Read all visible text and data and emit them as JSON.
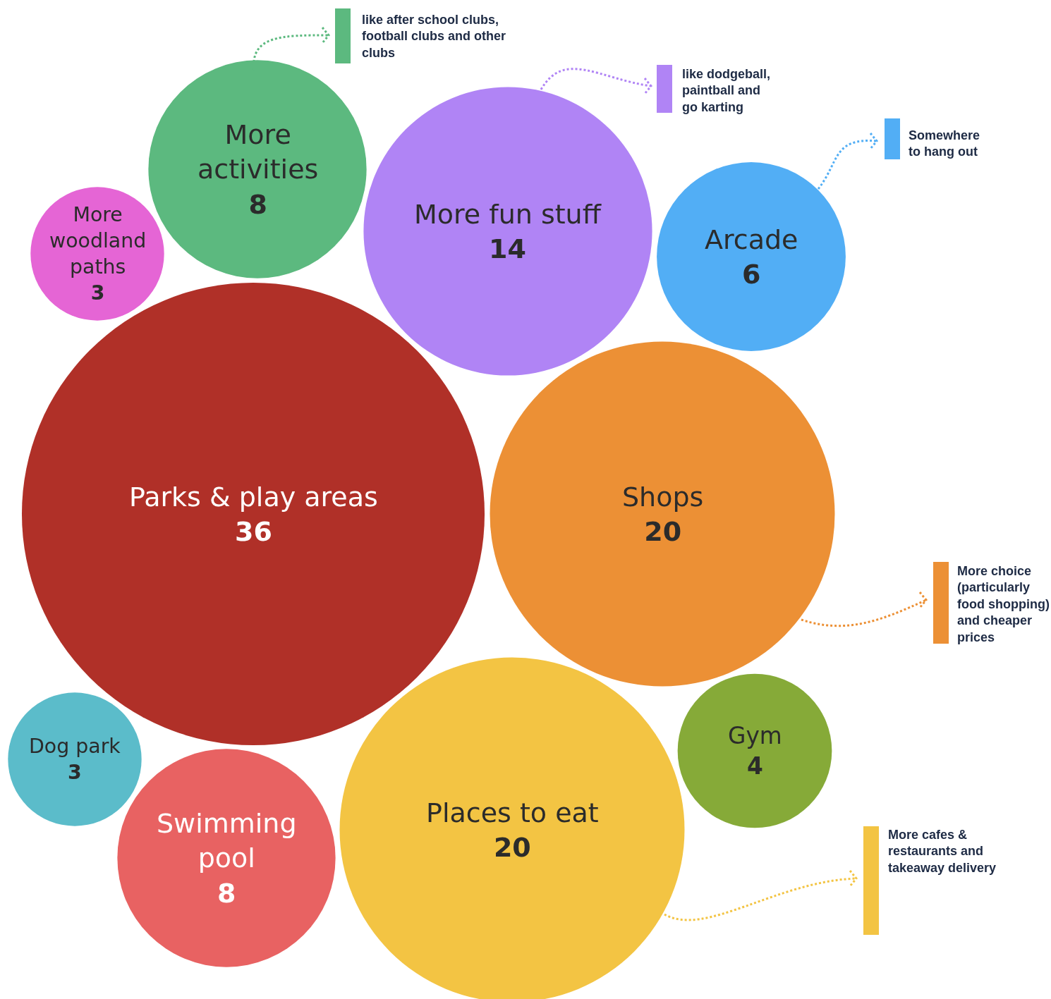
{
  "chart_data": {
    "type": "other",
    "categories": [
      "Parks & play areas",
      "Shops",
      "Places to eat",
      "More fun stuff",
      "More activities",
      "Swimming pool",
      "Arcade",
      "Gym",
      "More woodland paths",
      "Dog park"
    ],
    "values": [
      36,
      20,
      20,
      14,
      8,
      8,
      6,
      4,
      3,
      3
    ],
    "colors": [
      "#b03028",
      "#ec9035",
      "#f3c443",
      "#b084f5",
      "#5cb97f",
      "#e86262",
      "#52aef5",
      "#86aa38",
      "#e565d5",
      "#5bbcca"
    ],
    "data_labels": true,
    "annotations": [
      "like after school clubs, football clubs and other clubs",
      "like dodgeball, paintball and go karting",
      "Somewhere to hang out",
      "More choice (particularly food shopping) and cheaper prices",
      "More cafes & restaurants and takeaway delivery"
    ]
  }
}
